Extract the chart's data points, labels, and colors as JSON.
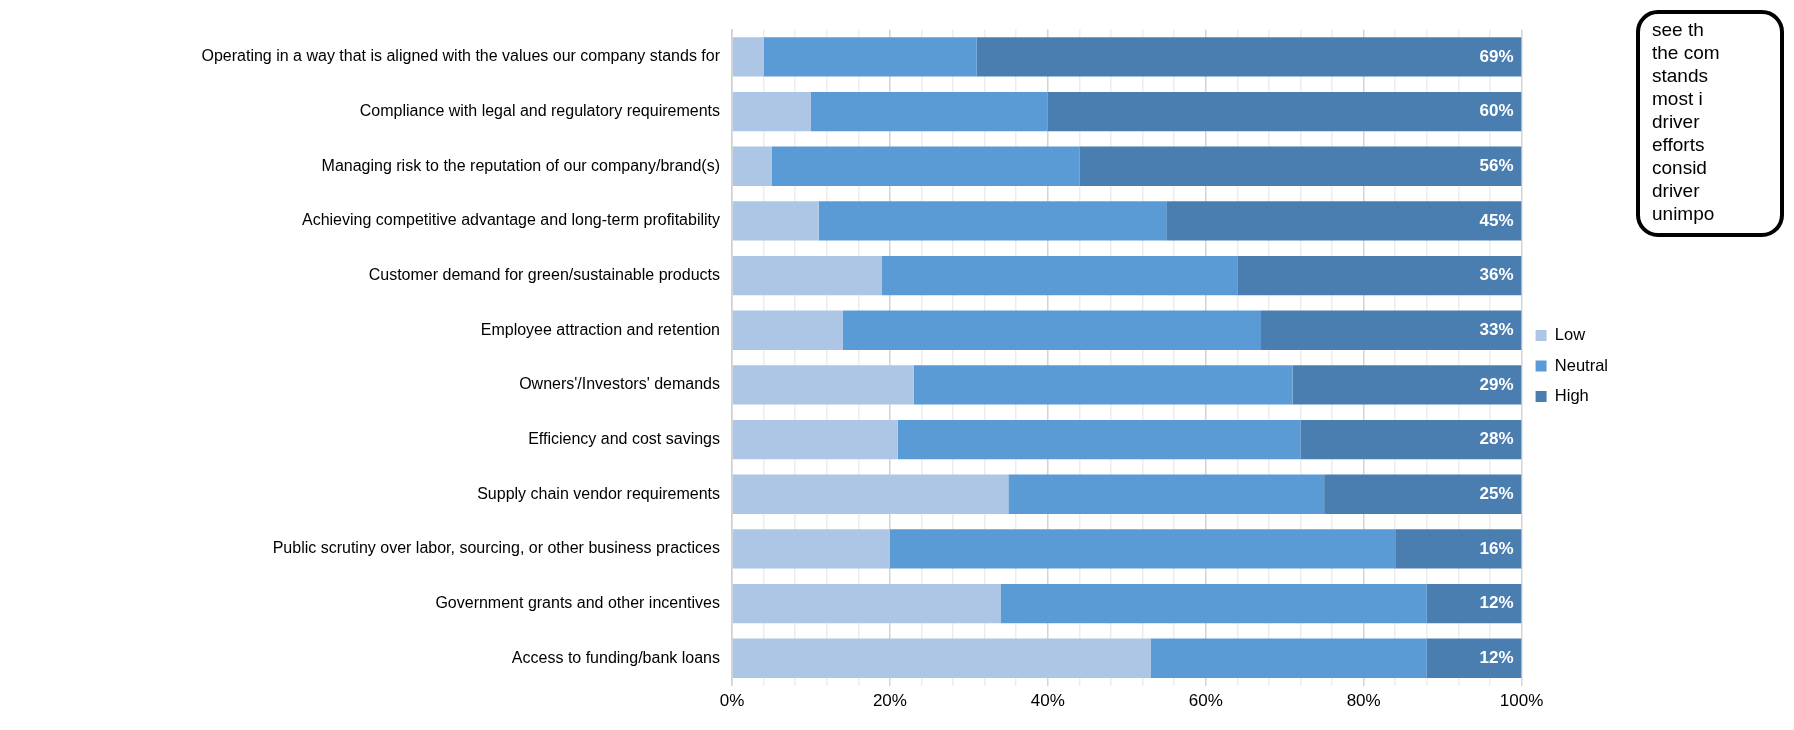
{
  "chart_data": {
    "type": "bar",
    "orientation": "horizontal",
    "stacked": true,
    "categories": [
      "Operating in a way that is aligned with the values our company stands for",
      "Compliance with legal and regulatory requirements",
      "Managing risk to the reputation of our company/brand(s)",
      "Achieving competitive advantage and long-term profitability",
      "Customer demand for green/sustainable products",
      "Employee attraction and retention",
      "Owners'/Investors' demands",
      "Efficiency and cost savings",
      "Supply chain vendor requirements",
      "Public scrutiny over labor, sourcing, or other business practices",
      "Government grants and other incentives",
      "Access to funding/bank loans"
    ],
    "series": [
      {
        "name": "Low",
        "color": "#adc6e5",
        "values": [
          4,
          10,
          5,
          11,
          19,
          14,
          23,
          21,
          35,
          20,
          34,
          53
        ]
      },
      {
        "name": "Neutral",
        "color": "#5b9bd5",
        "values": [
          27,
          30,
          39,
          44,
          45,
          53,
          48,
          51,
          40,
          64,
          54,
          35
        ]
      },
      {
        "name": "High",
        "color": "#4a7eb0",
        "values": [
          69,
          60,
          56,
          45,
          36,
          33,
          29,
          28,
          25,
          16,
          12,
          12
        ],
        "value_labels": [
          "69%",
          "60%",
          "56%",
          "45%",
          "36%",
          "33%",
          "29%",
          "28%",
          "25%",
          "16%",
          "12%",
          "12%"
        ]
      }
    ],
    "xlim": [
      0,
      100
    ],
    "xticks": [
      {
        "value": 0,
        "label": "0%"
      },
      {
        "value": 4,
        "label": null
      },
      {
        "value": 8,
        "label": null
      },
      {
        "value": 12,
        "label": null
      },
      {
        "value": 16,
        "label": null
      },
      {
        "value": 20,
        "label": "20%"
      },
      {
        "value": 24,
        "label": null
      },
      {
        "value": 28,
        "label": null
      },
      {
        "value": 32,
        "label": null
      },
      {
        "value": 36,
        "label": null
      },
      {
        "value": 40,
        "label": "40%"
      },
      {
        "value": 44,
        "label": null
      },
      {
        "value": 48,
        "label": null
      },
      {
        "value": 52,
        "label": null
      },
      {
        "value": 56,
        "label": null
      },
      {
        "value": 60,
        "label": "60%"
      },
      {
        "value": 64,
        "label": null
      },
      {
        "value": 68,
        "label": null
      },
      {
        "value": 72,
        "label": null
      },
      {
        "value": 76,
        "label": null
      },
      {
        "value": 80,
        "label": "80%"
      },
      {
        "value": 84,
        "label": null
      },
      {
        "value": 88,
        "label": null
      },
      {
        "value": 92,
        "label": null
      },
      {
        "value": 96,
        "label": null
      },
      {
        "value": 100,
        "label": "100%"
      }
    ],
    "grid": "x",
    "legend": "right",
    "annotations": [
      "see th\nthe com\nstands\nmost i\ndriver\nefforts\nconsid\ndriver\nunimpo"
    ]
  }
}
